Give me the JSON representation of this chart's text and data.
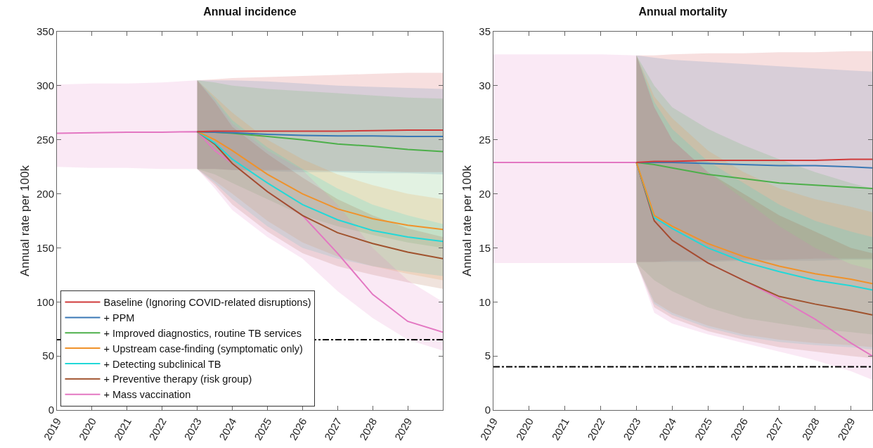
{
  "chart_data": [
    {
      "type": "line",
      "title": "Annual incidence",
      "ylabel": "Annual rate per 100k",
      "x": [
        2019,
        2020,
        2021,
        2022,
        2023,
        2023.5,
        2024,
        2025,
        2026,
        2027,
        2028,
        2029,
        2030
      ],
      "xlim": [
        2019,
        2030
      ],
      "xticks": [
        2019,
        2020,
        2021,
        2022,
        2023,
        2024,
        2025,
        2026,
        2027,
        2028,
        2029
      ],
      "ylim": [
        0,
        350
      ],
      "yticks": [
        0,
        50,
        100,
        150,
        200,
        250,
        300,
        350
      ],
      "grid": false,
      "legend": "bottom left",
      "marker": "none",
      "line_style": "solid",
      "series": [
        {
          "name": "Baseline (Ignoring COVID-related disruptions)",
          "color": "#d03a3a",
          "values": [
            null,
            null,
            null,
            null,
            257.5,
            258,
            258,
            258,
            258,
            258,
            258.5,
            259,
            259
          ],
          "lower": [
            null,
            null,
            null,
            null,
            223,
            223,
            222,
            222,
            222,
            221,
            221,
            220,
            220
          ],
          "upper": [
            null,
            null,
            null,
            null,
            305,
            306,
            307,
            308,
            309,
            310,
            311,
            312,
            312
          ]
        },
        {
          "name": "+ PPM",
          "color": "#3a78b5",
          "values": [
            null,
            null,
            null,
            null,
            257.5,
            257,
            256.5,
            255,
            254,
            253.5,
            253.5,
            253,
            253
          ],
          "lower": [
            null,
            null,
            null,
            null,
            223,
            223,
            222,
            221,
            220,
            220,
            219,
            219,
            218
          ],
          "upper": [
            null,
            null,
            null,
            null,
            305,
            305,
            305,
            304,
            302,
            300,
            299,
            298,
            297
          ]
        },
        {
          "name": "+ Improved diagnostics, routine TB services",
          "color": "#4daf4a",
          "values": [
            null,
            null,
            null,
            null,
            257.5,
            257,
            256,
            253,
            250,
            246,
            244,
            241,
            239
          ],
          "lower": [
            null,
            null,
            null,
            null,
            223,
            218,
            210,
            195,
            180,
            170,
            162,
            155,
            150
          ],
          "upper": [
            null,
            null,
            null,
            null,
            305,
            303,
            300,
            297,
            295,
            293,
            291,
            289,
            288
          ]
        },
        {
          "name": "+ Upstream case-finding (symptomatic only)",
          "color": "#f0922a",
          "values": [
            null,
            null,
            null,
            null,
            257.5,
            250,
            240,
            218,
            200,
            186,
            177,
            171,
            167
          ],
          "lower": [
            null,
            null,
            null,
            null,
            223,
            212,
            200,
            175,
            155,
            142,
            133,
            126,
            120
          ],
          "upper": [
            null,
            null,
            null,
            null,
            305,
            290,
            275,
            250,
            232,
            218,
            208,
            200,
            195
          ]
        },
        {
          "name": "+ Detecting subclinical TB",
          "color": "#22d8d8",
          "values": [
            null,
            null,
            null,
            null,
            257.5,
            247,
            232,
            210,
            190,
            176,
            166,
            160,
            156
          ],
          "lower": [
            null,
            null,
            null,
            null,
            223,
            210,
            195,
            170,
            150,
            140,
            133,
            128,
            124
          ],
          "upper": [
            null,
            null,
            null,
            null,
            305,
            288,
            268,
            243,
            223,
            205,
            190,
            180,
            172
          ]
        },
        {
          "name": "+ Preventive therapy (risk group)",
          "color": "#a0522d",
          "values": [
            null,
            null,
            null,
            null,
            257.5,
            246,
            228,
            202,
            180,
            164,
            154,
            146,
            140
          ],
          "lower": [
            null,
            null,
            null,
            null,
            223,
            208,
            190,
            165,
            145,
            133,
            125,
            118,
            112
          ],
          "upper": [
            null,
            null,
            null,
            null,
            305,
            285,
            262,
            237,
            215,
            195,
            180,
            168,
            160
          ]
        },
        {
          "name": "+ Mass vaccination",
          "color": "#e377c2",
          "values": [
            256,
            256.5,
            257,
            257,
            257.5,
            240,
            228,
            202,
            180,
            145,
            107,
            82,
            72
          ],
          "lower": [
            225,
            224,
            224,
            223,
            223,
            205,
            185,
            160,
            140,
            110,
            85,
            65,
            55
          ],
          "upper": [
            301,
            302,
            302,
            303,
            305,
            287,
            265,
            240,
            222,
            190,
            150,
            120,
            100
          ]
        }
      ],
      "ref_lines": [
        {
          "axis": "y",
          "value": 65,
          "color": "#000000",
          "line_style": "dashdot"
        }
      ]
    },
    {
      "type": "line",
      "title": "Annual mortality",
      "ylabel": "Annual rate per 100k",
      "x": [
        2019,
        2020,
        2021,
        2022,
        2023,
        2023.5,
        2024,
        2025,
        2026,
        2027,
        2028,
        2029,
        2029.6
      ],
      "xlim": [
        2019,
        2029.6
      ],
      "xticks": [
        2019,
        2020,
        2021,
        2022,
        2023,
        2024,
        2025,
        2026,
        2027,
        2028,
        2029
      ],
      "ylim": [
        0,
        35
      ],
      "yticks": [
        0,
        5,
        10,
        15,
        20,
        25,
        30,
        35
      ],
      "grid": false,
      "marker": "none",
      "line_style": "solid",
      "series": [
        {
          "color": "#d03a3a",
          "values": [
            null,
            null,
            null,
            null,
            22.9,
            23,
            23,
            23.1,
            23.1,
            23.1,
            23.1,
            23.2,
            23.2
          ],
          "lower": [
            null,
            null,
            null,
            null,
            13.7,
            13.7,
            13.8,
            13.8,
            13.9,
            13.9,
            14,
            14,
            14
          ],
          "upper": [
            null,
            null,
            null,
            null,
            32.8,
            32.8,
            32.9,
            33,
            33,
            33.1,
            33.1,
            33.2,
            33.2
          ]
        },
        {
          "color": "#3a78b5",
          "values": [
            null,
            null,
            null,
            null,
            22.9,
            22.9,
            22.9,
            22.8,
            22.7,
            22.6,
            22.6,
            22.5,
            22.4
          ],
          "lower": [
            null,
            null,
            null,
            null,
            13.7,
            13.7,
            13.7,
            13.7,
            13.8,
            13.8,
            13.8,
            13.9,
            13.9
          ],
          "upper": [
            null,
            null,
            null,
            null,
            32.8,
            32.6,
            32.4,
            32.2,
            32,
            31.8,
            31.6,
            31.4,
            31.3
          ]
        },
        {
          "color": "#4daf4a",
          "values": [
            null,
            null,
            null,
            null,
            22.9,
            22.7,
            22.4,
            21.8,
            21.4,
            21,
            20.8,
            20.6,
            20.5
          ],
          "lower": [
            null,
            null,
            null,
            null,
            13.6,
            12,
            11,
            9.5,
            8.5,
            8,
            7.5,
            7.2,
            7
          ],
          "upper": [
            null,
            null,
            null,
            null,
            32.8,
            30,
            28,
            26,
            24.5,
            23.2,
            22,
            21,
            20.5
          ]
        },
        {
          "color": "#f0922a",
          "values": [
            null,
            null,
            null,
            null,
            22.9,
            18,
            17,
            15.4,
            14.2,
            13.3,
            12.6,
            12.1,
            11.7
          ],
          "lower": [
            null,
            null,
            null,
            null,
            13.6,
            10,
            9,
            7.8,
            7,
            6.5,
            6.2,
            6,
            5.8
          ],
          "upper": [
            null,
            null,
            null,
            null,
            32.8,
            29,
            27,
            24,
            22,
            20.5,
            19.5,
            18.8,
            18.3
          ]
        },
        {
          "color": "#22d8d8",
          "values": [
            null,
            null,
            null,
            null,
            22.9,
            17.8,
            16.8,
            15,
            13.7,
            12.8,
            12,
            11.5,
            11.1
          ],
          "lower": [
            null,
            null,
            null,
            null,
            13.6,
            9.8,
            8.8,
            7.6,
            6.8,
            6.3,
            6,
            5.8,
            5.6
          ],
          "upper": [
            null,
            null,
            null,
            null,
            32.8,
            28.5,
            26,
            23,
            21,
            19,
            17.5,
            16.5,
            16
          ]
        },
        {
          "color": "#a0522d",
          "values": [
            null,
            null,
            null,
            null,
            22.9,
            17.5,
            15.7,
            13.6,
            12,
            10.5,
            9.8,
            9.2,
            8.8
          ],
          "lower": [
            null,
            null,
            null,
            null,
            13.6,
            9.5,
            8.5,
            7.3,
            6.5,
            5.8,
            5.4,
            5,
            4.8
          ],
          "upper": [
            null,
            null,
            null,
            null,
            32.8,
            28,
            25,
            22,
            20,
            18,
            16.5,
            15,
            14.5
          ]
        },
        {
          "color": "#e377c2",
          "values": [
            22.9,
            22.9,
            22.9,
            22.9,
            22.9,
            17.5,
            15.7,
            13.6,
            12,
            10.3,
            8.4,
            6.2,
            5
          ],
          "lower": [
            13.6,
            13.6,
            13.6,
            13.6,
            13.6,
            9,
            8,
            7,
            6.2,
            5.4,
            4.6,
            3.6,
            2.8
          ],
          "upper": [
            32.9,
            32.9,
            32.9,
            32.9,
            32.8,
            28,
            25,
            22,
            19.5,
            17,
            15,
            13.5,
            13
          ]
        }
      ],
      "ref_lines": [
        {
          "axis": "y",
          "value": 4,
          "color": "#000000",
          "line_style": "dashdot"
        }
      ]
    }
  ]
}
